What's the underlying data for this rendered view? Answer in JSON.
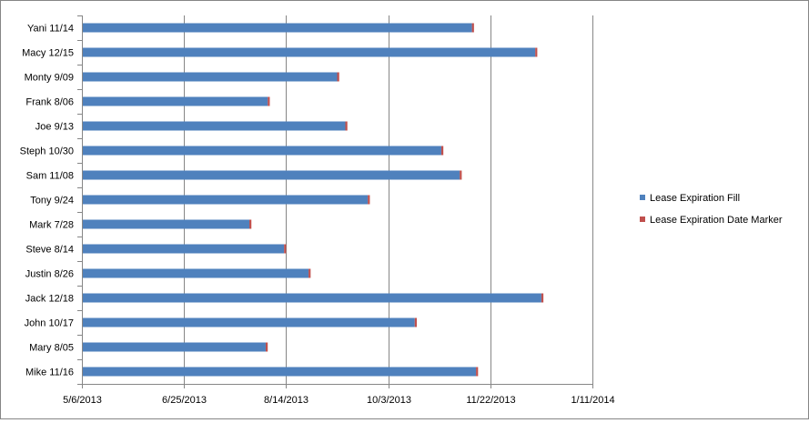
{
  "chart_data": {
    "type": "bar",
    "orientation": "horizontal",
    "stacked": true,
    "categories": [
      "Yani 11/14",
      "Macy 12/15",
      "Monty 9/09",
      "Frank 8/06",
      "Joe 9/13",
      "Steph 10/30",
      "Sam 11/08",
      "Tony 9/24",
      "Mark 7/28",
      "Steve 8/14",
      "Justin 8/26",
      "Jack 12/18",
      "John 10/17",
      "Mary 8/05",
      "Mike 11/16"
    ],
    "series": [
      {
        "name": "Lease Expiration Fill",
        "color": "#4F81BD",
        "values": [
          "2013-11-13",
          "2013-12-14",
          "2013-09-08",
          "2013-08-05",
          "2013-09-12",
          "2013-10-29",
          "2013-11-07",
          "2013-09-23",
          "2013-07-27",
          "2013-08-13",
          "2013-08-25",
          "2013-12-17",
          "2013-10-16",
          "2013-08-04",
          "2013-11-15"
        ]
      },
      {
        "name": "Lease Expiration Date Marker",
        "color": "#C0504D",
        "values": [
          1,
          1,
          1,
          1,
          1,
          1,
          1,
          1,
          1,
          1,
          1,
          1,
          1,
          1,
          1
        ]
      }
    ],
    "xaxis": {
      "scale": "date",
      "ticks": [
        "2013-05-06",
        "2013-06-25",
        "2013-08-14",
        "2013-10-03",
        "2013-11-22",
        "2014-01-11"
      ],
      "tick_labels": [
        "5/6/2013",
        "6/25/2013",
        "8/14/2013",
        "10/3/2013",
        "11/22/2013",
        "1/11/2014"
      ]
    },
    "xlim": [
      "2013-05-06",
      "2014-01-11"
    ],
    "gridlines": "vertical",
    "legend": "right",
    "title": "",
    "xlabel": "",
    "ylabel": ""
  }
}
